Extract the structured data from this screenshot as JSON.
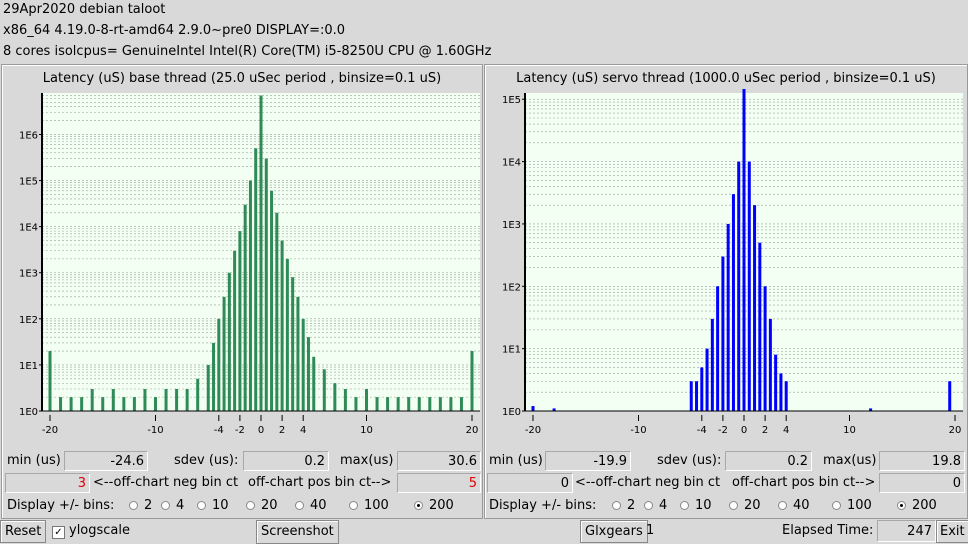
{
  "header": {
    "line1": "29Apr2020 debian taloot",
    "line2": " x86_64  4.19.0-8-rt-amd64  2.9.0~pre0  DISPLAY=:0.0",
    "line3": " 8 cores  isolcpus=   GenuineIntel  Intel(R) Core(TM) i5-8250U CPU @ 1.60GHz"
  },
  "base": {
    "title": "Latency (uS) base thread (25.0 uSec period , binsize=0.1 uS)",
    "min_label": "min (us)",
    "min_value": "-24.6",
    "sdev_label": "sdev (us):",
    "sdev_value": "0.2",
    "max_label": "max(us)",
    "max_value": "30.6",
    "neg_count": "3",
    "neg_label": "<--off-chart neg bin ct",
    "pos_label": "off-chart pos bin ct-->",
    "pos_count": "5",
    "bins_label": "Display +/- bins:",
    "bins": [
      "2",
      "4",
      "10",
      "20",
      "40",
      "100",
      "200"
    ],
    "selected_bin": "200",
    "color": "#2e8b57"
  },
  "servo": {
    "title": "Latency (uS) servo thread (1000.0 uSec period , binsize=0.1 uS)",
    "min_label": "min (us)",
    "min_value": "-19.9",
    "sdev_label": "sdev (us):",
    "sdev_value": "0.2",
    "max_label": "max(us)",
    "max_value": "19.8",
    "neg_count": "0",
    "neg_label": "<--off-chart neg bin ct",
    "pos_label": "off-chart pos bin ct-->",
    "pos_count": "0",
    "bins_label": "Display +/- bins:",
    "bins": [
      "2",
      "4",
      "10",
      "20",
      "40",
      "100",
      "200"
    ],
    "selected_bin": "200",
    "color": "#0000ff"
  },
  "footer": {
    "reset": "Reset",
    "ylogscale": "ylogscale",
    "ylogscale_checked": true,
    "screenshot": "Screenshot",
    "glxgears": "Glxgears",
    "glxgears_count": "1",
    "elapsed_label": "Elapsed Time:",
    "elapsed_value": "247",
    "exit": "Exit"
  },
  "chart_data": [
    {
      "type": "bar",
      "title": "Latency (uS) base thread (25.0 uSec period , binsize=0.1 uS)",
      "x_ticks": [
        -20,
        -10,
        -4,
        -2,
        0,
        2,
        4,
        10,
        20
      ],
      "y_ticks": [
        "1E0",
        "1E1",
        "1E2",
        "1E3",
        "1E4",
        "1E5",
        "1E6"
      ],
      "y_scale": "log",
      "xlim": [
        -20,
        20
      ],
      "ylim_log10": [
        0,
        6.9
      ],
      "color": "#2e8b57",
      "x": [
        -20,
        -19,
        -18,
        -17,
        -16,
        -15,
        -14,
        -13,
        -12,
        -11,
        -10,
        -9,
        -8,
        -7,
        -6,
        -5,
        -4.5,
        -4,
        -3.5,
        -3,
        -2.5,
        -2,
        -1.5,
        -1,
        -0.5,
        0,
        0.5,
        1,
        1.5,
        2,
        2.5,
        3,
        3.5,
        4,
        4.5,
        5,
        6,
        7,
        8,
        9,
        10,
        11,
        12,
        13,
        14,
        15,
        16,
        17,
        18,
        19,
        20
      ],
      "y": [
        20,
        2,
        2,
        2,
        3,
        2,
        3,
        2,
        2,
        3,
        2,
        3,
        3,
        3,
        5,
        10,
        30,
        100,
        300,
        1000,
        3000,
        8000,
        30000,
        100000,
        500000,
        7000000,
        300000,
        60000,
        20000,
        5000,
        2000,
        800,
        300,
        100,
        40,
        15,
        8,
        4,
        3,
        2,
        3,
        2,
        2,
        2,
        2,
        2,
        2,
        2,
        2,
        2,
        20
      ]
    },
    {
      "type": "bar",
      "title": "Latency (uS) servo thread (1000.0 uSec period , binsize=0.1 uS)",
      "x_ticks": [
        -20,
        -10,
        -4,
        -2,
        0,
        2,
        4,
        10,
        20
      ],
      "y_ticks": [
        "1E0",
        "1E1",
        "1E2",
        "1E3",
        "1E4",
        "1E5"
      ],
      "y_scale": "log",
      "xlim": [
        -20,
        20
      ],
      "ylim_log10": [
        0,
        5.1
      ],
      "color": "#0000ff",
      "x": [
        -20,
        -18,
        -5,
        -4.5,
        -4,
        -3.5,
        -3,
        -2.5,
        -2,
        -1.5,
        -1,
        -0.5,
        0,
        0.5,
        1,
        1.5,
        2,
        2.5,
        3,
        3.5,
        4,
        12,
        19.5
      ],
      "y": [
        1.2,
        1.1,
        3,
        3,
        5,
        10,
        30,
        100,
        300,
        1000,
        3000,
        10000,
        150000,
        10000,
        2000,
        500,
        100,
        30,
        8,
        4,
        3,
        1.1,
        3
      ]
    }
  ]
}
